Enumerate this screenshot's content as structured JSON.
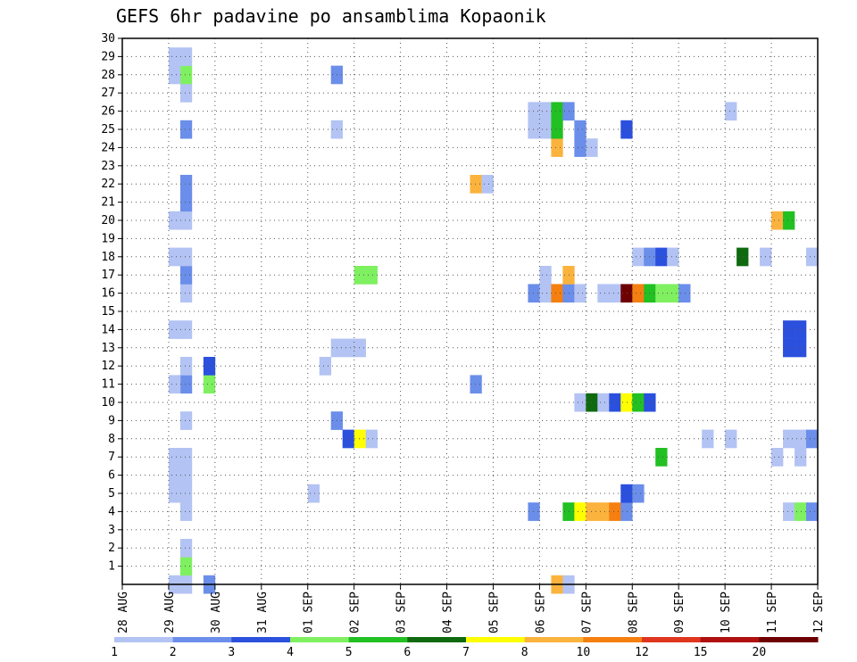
{
  "chart_data": {
    "type": "heatmap",
    "title": "GEFS 6hr padavine po ansamblima Kopaonik",
    "xlabel": "",
    "ylabel": "",
    "x_tick_labels": [
      "28 AUG",
      "29 AUG",
      "30 AUG",
      "31 AUG",
      "01 SEP",
      "02 SEP",
      "03 SEP",
      "04 SEP",
      "05 SEP",
      "06 SEP",
      "07 SEP",
      "08 SEP",
      "09 SEP",
      "10 SEP",
      "11 SEP",
      "12 SEP"
    ],
    "x_unit": "6-hour step from 28 AUG 00z",
    "y_ticks": [
      1,
      2,
      3,
      4,
      5,
      6,
      7,
      8,
      9,
      10,
      11,
      12,
      13,
      14,
      15,
      16,
      17,
      18,
      19,
      20,
      21,
      22,
      23,
      24,
      25,
      26,
      27,
      28,
      29,
      30
    ],
    "ylim": [
      0,
      30
    ],
    "grid": true,
    "colorbar": {
      "labels": [
        "1",
        "2",
        "3",
        "4",
        "5",
        "6",
        "7",
        "8",
        "10",
        "12",
        "15",
        "20"
      ],
      "colors": [
        "#b3c3f3",
        "#6b8eea",
        "#2b50dd",
        "#7ff060",
        "#22c022",
        "#0f6a0f",
        "#ffff00",
        "#fbb33d",
        "#f57f10",
        "#e0351f",
        "#b01010",
        "#6e0000"
      ]
    },
    "cells": [
      [
        4,
        0,
        1
      ],
      [
        5,
        0,
        1
      ],
      [
        5,
        1,
        4
      ],
      [
        5,
        2,
        1
      ],
      [
        5,
        4,
        1
      ],
      [
        5,
        5,
        1
      ],
      [
        5,
        6,
        1
      ],
      [
        5,
        7,
        1
      ],
      [
        5,
        9,
        1
      ],
      [
        5,
        11,
        2
      ],
      [
        5,
        12,
        1
      ],
      [
        5,
        14,
        1
      ],
      [
        5,
        16,
        1
      ],
      [
        5,
        17,
        2
      ],
      [
        5,
        18,
        1
      ],
      [
        5,
        20,
        1
      ],
      [
        5,
        21,
        2
      ],
      [
        5,
        22,
        2
      ],
      [
        5,
        25,
        2
      ],
      [
        5,
        27,
        1
      ],
      [
        5,
        28,
        4
      ],
      [
        5,
        29,
        1
      ],
      [
        4,
        5,
        1
      ],
      [
        4,
        6,
        1
      ],
      [
        4,
        7,
        1
      ],
      [
        4,
        11,
        1
      ],
      [
        4,
        14,
        1
      ],
      [
        4,
        18,
        1
      ],
      [
        4,
        20,
        1
      ],
      [
        4,
        28,
        1
      ],
      [
        4,
        29,
        1
      ],
      [
        7,
        0,
        2
      ],
      [
        7,
        11,
        4
      ],
      [
        7,
        12,
        3
      ],
      [
        16,
        5,
        1
      ],
      [
        17,
        12,
        1
      ],
      [
        18,
        9,
        2
      ],
      [
        18,
        13,
        1
      ],
      [
        18,
        25,
        1
      ],
      [
        18,
        28,
        2
      ],
      [
        19,
        13,
        1
      ],
      [
        19,
        8,
        3
      ],
      [
        20,
        8,
        7
      ],
      [
        20,
        13,
        1
      ],
      [
        21,
        8,
        1
      ],
      [
        20,
        17,
        4
      ],
      [
        21,
        17,
        4
      ],
      [
        30,
        22,
        8
      ],
      [
        31,
        22,
        1
      ],
      [
        30,
        11,
        2
      ],
      [
        35,
        4,
        2
      ],
      [
        35,
        16,
        2
      ],
      [
        35,
        25,
        1
      ],
      [
        35,
        26,
        1
      ],
      [
        36,
        16,
        1
      ],
      [
        36,
        17,
        1
      ],
      [
        36,
        25,
        1
      ],
      [
        36,
        26,
        1
      ],
      [
        37,
        0,
        8
      ],
      [
        37,
        16,
        9
      ],
      [
        37,
        24,
        8
      ],
      [
        37,
        25,
        5
      ],
      [
        37,
        26,
        5
      ],
      [
        38,
        0,
        1
      ],
      [
        38,
        4,
        5
      ],
      [
        38,
        16,
        2
      ],
      [
        38,
        17,
        8
      ],
      [
        38,
        26,
        2
      ],
      [
        39,
        4,
        7
      ],
      [
        39,
        10,
        1
      ],
      [
        39,
        16,
        1
      ],
      [
        39,
        25,
        2
      ],
      [
        39,
        24,
        2
      ],
      [
        40,
        4,
        8
      ],
      [
        40,
        10,
        6
      ],
      [
        40,
        24,
        1
      ],
      [
        41,
        4,
        8
      ],
      [
        41,
        10,
        1
      ],
      [
        41,
        16,
        1
      ],
      [
        42,
        4,
        9
      ],
      [
        42,
        10,
        3
      ],
      [
        42,
        16,
        1
      ],
      [
        43,
        4,
        2
      ],
      [
        43,
        5,
        3
      ],
      [
        43,
        10,
        7
      ],
      [
        43,
        16,
        12
      ],
      [
        43,
        25,
        3
      ],
      [
        44,
        5,
        2
      ],
      [
        44,
        10,
        5
      ],
      [
        44,
        16,
        9
      ],
      [
        44,
        18,
        1
      ],
      [
        45,
        10,
        3
      ],
      [
        45,
        16,
        5
      ],
      [
        45,
        18,
        2
      ],
      [
        46,
        7,
        5
      ],
      [
        46,
        16,
        4
      ],
      [
        46,
        18,
        3
      ],
      [
        47,
        16,
        4
      ],
      [
        47,
        18,
        1
      ],
      [
        48,
        16,
        2
      ],
      [
        50,
        8,
        1
      ],
      [
        52,
        8,
        1
      ],
      [
        52,
        26,
        1
      ],
      [
        53,
        18,
        6
      ],
      [
        55,
        18,
        1
      ],
      [
        56,
        7,
        1
      ],
      [
        56,
        20,
        8
      ],
      [
        57,
        4,
        1
      ],
      [
        57,
        8,
        1
      ],
      [
        57,
        13,
        3
      ],
      [
        57,
        14,
        3
      ],
      [
        57,
        20,
        5
      ],
      [
        58,
        4,
        4
      ],
      [
        58,
        7,
        1
      ],
      [
        58,
        8,
        1
      ],
      [
        58,
        13,
        3
      ],
      [
        58,
        14,
        3
      ],
      [
        59,
        4,
        2
      ],
      [
        59,
        8,
        2
      ],
      [
        59,
        18,
        1
      ]
    ]
  }
}
